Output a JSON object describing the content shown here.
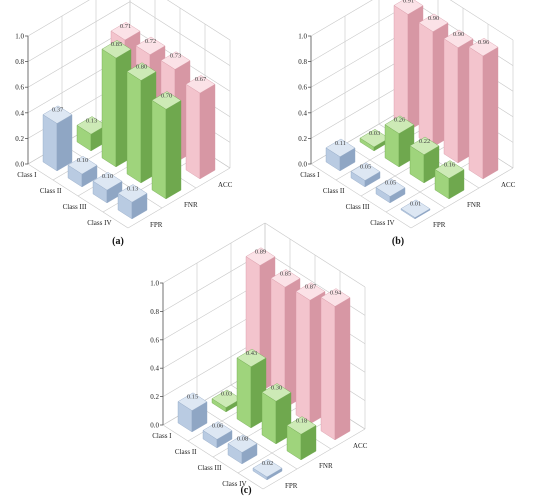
{
  "chart_data": [
    {
      "type": "bar3d",
      "panel_label": "(a)",
      "classes": [
        "Class I",
        "Class II",
        "Class III",
        "Class IV"
      ],
      "metrics": [
        "FPR",
        "FNR",
        "ACC"
      ],
      "zlim": [
        0,
        1.0
      ],
      "zticks": [
        "0.0",
        "0.2",
        "0.4",
        "0.6",
        "0.8",
        "1.0"
      ],
      "series": [
        {
          "metric": "FPR",
          "values": [
            0.37,
            0.1,
            0.1,
            0.13
          ],
          "labels": [
            "0.37",
            "0.10",
            "0.10",
            "0.13"
          ]
        },
        {
          "metric": "FNR",
          "values": [
            0.13,
            0.85,
            0.8,
            0.7
          ],
          "labels": [
            "0.13",
            "0.85",
            "0.80",
            "0.70"
          ]
        },
        {
          "metric": "ACC",
          "values": [
            0.71,
            0.72,
            0.73,
            0.67
          ],
          "labels": [
            "0.71",
            "0.72",
            "0.73",
            "0.67"
          ]
        }
      ]
    },
    {
      "type": "bar3d",
      "panel_label": "(b)",
      "classes": [
        "Class I",
        "Class II",
        "Class III",
        "Class IV"
      ],
      "metrics": [
        "FPR",
        "FNR",
        "ACC"
      ],
      "zlim": [
        0,
        1.0
      ],
      "zticks": [
        "0.0",
        "0.2",
        "0.4",
        "0.6",
        "0.8",
        "1.0"
      ],
      "series": [
        {
          "metric": "FPR",
          "values": [
            0.11,
            0.05,
            0.05,
            0.01
          ],
          "labels": [
            "0.11",
            "0.05",
            "0.05",
            "0.01"
          ]
        },
        {
          "metric": "FNR",
          "values": [
            0.03,
            0.26,
            0.22,
            0.16
          ],
          "labels": [
            "0.03",
            "0.26",
            "0.22",
            "0.16"
          ]
        },
        {
          "metric": "ACC",
          "values": [
            0.91,
            0.9,
            0.9,
            0.96
          ],
          "labels": [
            "0.91",
            "0.90",
            "0.90",
            "0.96"
          ]
        }
      ]
    },
    {
      "type": "bar3d",
      "panel_label": "(c)",
      "classes": [
        "Class I",
        "Class II",
        "Class III",
        "Class IV"
      ],
      "metrics": [
        "FPR",
        "FNR",
        "ACC"
      ],
      "zlim": [
        0,
        1.0
      ],
      "zticks": [
        "0.0",
        "0.2",
        "0.4",
        "0.6",
        "0.8",
        "1.0"
      ],
      "series": [
        {
          "metric": "FPR",
          "values": [
            0.15,
            0.06,
            0.08,
            0.02
          ],
          "labels": [
            "0.15",
            "0.06",
            "0.08",
            "0.02"
          ]
        },
        {
          "metric": "FNR",
          "values": [
            0.03,
            0.43,
            0.3,
            0.18
          ],
          "labels": [
            "0.03",
            "0.43",
            "0.30",
            "0.18"
          ]
        },
        {
          "metric": "ACC",
          "values": [
            0.89,
            0.85,
            0.87,
            0.94
          ],
          "labels": [
            "0.89",
            "0.85",
            "0.87",
            "0.94"
          ]
        }
      ]
    }
  ],
  "colors": {
    "FPR": {
      "front": "#b9cbe2",
      "side": "#8fa6c4",
      "top": "#dde7f3"
    },
    "FNR": {
      "front": "#9fd47c",
      "side": "#6fa84e",
      "top": "#cdeab6"
    },
    "ACC": {
      "front": "#f3c4cd",
      "side": "#d797a4",
      "top": "#fbe2e7"
    }
  }
}
